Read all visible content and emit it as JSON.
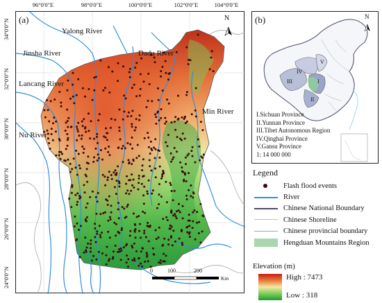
{
  "panel_a": {
    "label": "(a)",
    "x_ticks": [
      "96°0'0\"E",
      "98°0'0\"E",
      "100°0'0\"E",
      "102°0'0\"E",
      "104°0'0\"E"
    ],
    "y_ticks": [
      "34°0'0\"N",
      "32°0'0\"N",
      "30°0'0\"N",
      "28°0'0\"N",
      "26°0'0\"N",
      "24°0'0\"N"
    ],
    "rivers": {
      "yalong": "Yalong River",
      "jinsha": "Jinsha River",
      "dadu": "Dadu River",
      "lancang": "Lancang River",
      "min": "Min River",
      "nu": "Nu River"
    },
    "north_label": "N",
    "scale": {
      "zero": "0",
      "mid": "100",
      "end": "200",
      "unit": "Km"
    }
  },
  "panel_b": {
    "label": "(b)",
    "north_label": "N",
    "region_labels": [
      "IV",
      "III",
      "I",
      "II",
      "V"
    ],
    "provinces": [
      "I.Sichuan Province",
      "II.Yunnan Province",
      "III.Tibet Autonomous Region",
      "IV.Qinghai Province",
      "V.Gansu Province",
      "1: 14 000 000"
    ]
  },
  "legend": {
    "title": "Legend",
    "items": [
      {
        "label": "Flash flood events",
        "symbol": "dot",
        "color": "#3a0a0a"
      },
      {
        "label": "River",
        "symbol": "line",
        "color": "#2f8fdc"
      },
      {
        "label": "Chinese National Boundary",
        "symbol": "line",
        "color": "#4a4a6a"
      },
      {
        "label": "Chinese Shoreline",
        "symbol": "line",
        "color": "#8fd0ea"
      },
      {
        "label": "Chinese provincial boundary",
        "symbol": "line",
        "color": "#a8a8a8"
      },
      {
        "label": "Hengduan Mountains Region",
        "symbol": "box",
        "color": "#a9d6b0"
      }
    ]
  },
  "elevation": {
    "title": "Elevation (m)",
    "high": "High : 7473",
    "low": "Low : 318",
    "ramp_colors": [
      "#c81a10",
      "#e87a3a",
      "#f6e8a4",
      "#7ccf5a",
      "#1f9a3a"
    ]
  }
}
